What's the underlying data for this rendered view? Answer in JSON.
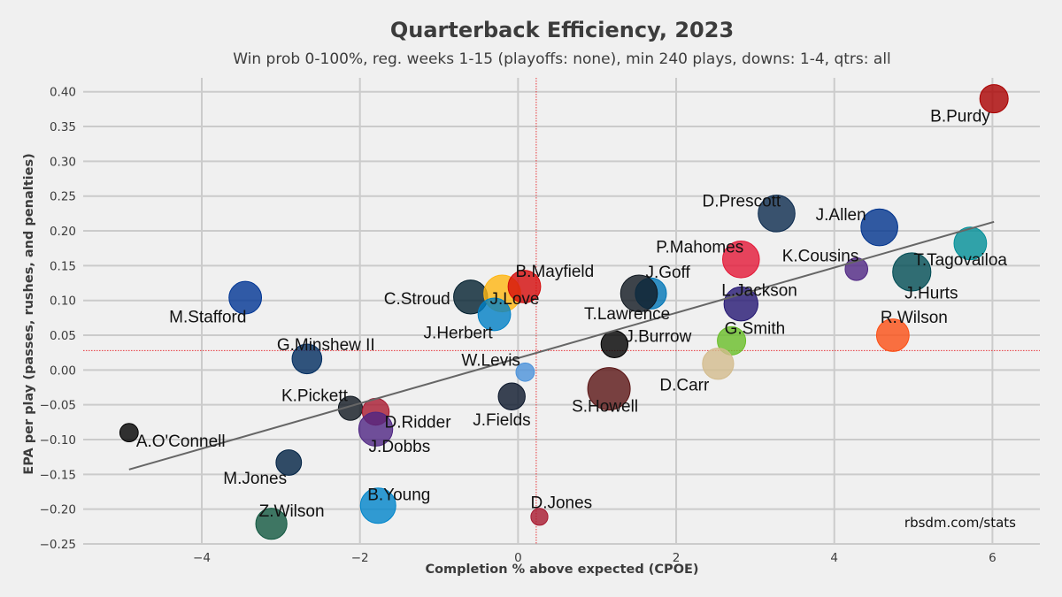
{
  "chart_data": {
    "type": "scatter",
    "title": "Quarterback Efficiency, 2023",
    "subtitle": "Win prob 0-100%, reg. weeks 1-15 (playoffs: none), min 240 plays, downs: 1-4, qtrs: all",
    "xlabel": "Completion % above expected (CPOE)",
    "ylabel": "EPA per play (passes, rushes, and penalties)",
    "credit": "rbsdm.com/stats",
    "xlim": [
      -5.5,
      6.6
    ],
    "ylim": [
      -0.25,
      0.42
    ],
    "xticks": [
      -4,
      -2,
      0,
      2,
      4,
      6
    ],
    "xtick_labels": [
      "−4",
      "−2",
      "0",
      "2",
      "4",
      "6"
    ],
    "yticks": [
      -0.25,
      -0.2,
      -0.15,
      -0.1,
      -0.05,
      0.0,
      0.05,
      0.1,
      0.15,
      0.2,
      0.25,
      0.3,
      0.35,
      0.4
    ],
    "ytick_labels": [
      "−0.25",
      "−0.20",
      "−0.15",
      "−0.10",
      "−0.05",
      "0.00",
      "0.05",
      "0.10",
      "0.15",
      "0.20",
      "0.25",
      "0.30",
      "0.35",
      "0.40"
    ],
    "mean_x": 0.23,
    "mean_y": 0.028,
    "trend_line": {
      "x1": -4.92,
      "y1": -0.143,
      "x2": 6.02,
      "y2": 0.213
    },
    "points": [
      {
        "name": "B.Purdy",
        "x": 6.02,
        "y": 0.39,
        "size": 1.0,
        "color": "#aa0000"
      },
      {
        "name": "D.Prescott",
        "x": 3.27,
        "y": 0.225,
        "size": 1.3,
        "color": "#0b2a4e"
      },
      {
        "name": "J.Allen",
        "x": 4.57,
        "y": 0.205,
        "size": 1.3,
        "color": "#00338d"
      },
      {
        "name": "T.Tagovailoa",
        "x": 5.72,
        "y": 0.182,
        "size": 1.15,
        "color": "#008e97"
      },
      {
        "name": "P.Mahomes",
        "x": 2.82,
        "y": 0.159,
        "size": 1.3,
        "color": "#e31837"
      },
      {
        "name": "K.Cousins",
        "x": 4.28,
        "y": 0.145,
        "size": 0.8,
        "color": "#4f2683"
      },
      {
        "name": "J.Hurts",
        "x": 4.98,
        "y": 0.141,
        "size": 1.35,
        "color": "#004c54"
      },
      {
        "name": "M.Stafford",
        "x": -3.45,
        "y": 0.104,
        "size": 1.15,
        "color": "#003594"
      },
      {
        "name": "C.Stroud",
        "x": -0.6,
        "y": 0.105,
        "size": 1.2,
        "color": "#03202f"
      },
      {
        "name": "J.Love",
        "x": -0.2,
        "y": 0.11,
        "size": 1.3,
        "color": "#ffb612"
      },
      {
        "name": "B.Mayfield",
        "x": 0.08,
        "y": 0.12,
        "size": 1.15,
        "color": "#d50a0a"
      },
      {
        "name": "J.Herbert",
        "x": -0.3,
        "y": 0.08,
        "size": 1.15,
        "color": "#0080c6"
      },
      {
        "name": "J.Goff",
        "x": 1.68,
        "y": 0.11,
        "size": 1.1,
        "color": "#0076b6"
      },
      {
        "name": "T.Lawrence",
        "x": 1.53,
        "y": 0.11,
        "size": 1.3,
        "color": "#101820"
      },
      {
        "name": "L.Jackson",
        "x": 2.82,
        "y": 0.095,
        "size": 1.2,
        "color": "#241773"
      },
      {
        "name": "J.Burrow",
        "x": 1.22,
        "y": 0.037,
        "size": 0.95,
        "color": "#000000"
      },
      {
        "name": "G.Smith",
        "x": 2.7,
        "y": 0.042,
        "size": 1.0,
        "color": "#69be28"
      },
      {
        "name": "R.Wilson",
        "x": 4.74,
        "y": 0.05,
        "size": 1.15,
        "color": "#fb4f14"
      },
      {
        "name": "D.Carr",
        "x": 2.53,
        "y": 0.009,
        "size": 1.1,
        "color": "#d3bc8d"
      },
      {
        "name": "G.Minshew II",
        "x": -2.67,
        "y": 0.016,
        "size": 1.05,
        "color": "#002c5f"
      },
      {
        "name": "W.Levis",
        "x": 0.09,
        "y": -0.003,
        "size": 0.65,
        "color": "#4b92db"
      },
      {
        "name": "S.Howell",
        "x": 1.15,
        "y": -0.027,
        "size": 1.5,
        "color": "#5a1414"
      },
      {
        "name": "J.Fields",
        "x": -0.08,
        "y": -0.038,
        "size": 0.95,
        "color": "#0b162a"
      },
      {
        "name": "K.Pickett",
        "x": -2.12,
        "y": -0.055,
        "size": 0.85,
        "color": "#101820"
      },
      {
        "name": "D.Ridder",
        "x": -1.8,
        "y": -0.06,
        "size": 0.95,
        "color": "#a71930"
      },
      {
        "name": "J.Dobbs",
        "x": -1.8,
        "y": -0.085,
        "size": 1.2,
        "color": "#4f2683"
      },
      {
        "name": "A.O'Connell",
        "x": -4.92,
        "y": -0.09,
        "size": 0.65,
        "color": "#000000"
      },
      {
        "name": "M.Jones",
        "x": -2.9,
        "y": -0.133,
        "size": 0.9,
        "color": "#002244"
      },
      {
        "name": "B.Young",
        "x": -1.77,
        "y": -0.195,
        "size": 1.25,
        "color": "#0085ca"
      },
      {
        "name": "D.Jones",
        "x": 0.27,
        "y": -0.211,
        "size": 0.6,
        "color": "#a71930"
      },
      {
        "name": "Z.Wilson",
        "x": -3.12,
        "y": -0.221,
        "size": 1.1,
        "color": "#125740"
      }
    ]
  }
}
